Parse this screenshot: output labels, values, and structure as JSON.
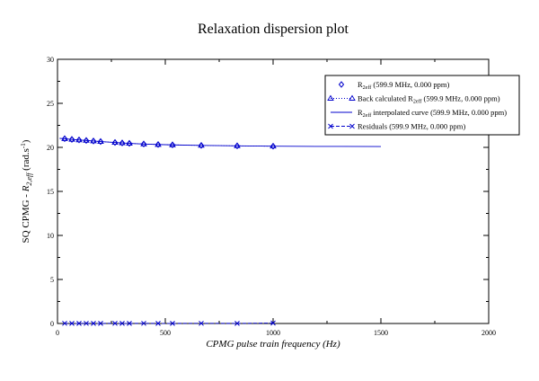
{
  "chart_data": {
    "type": "scatter",
    "title": "Relaxation dispersion plot",
    "xlabel": "CPMG pulse train frequency (Hz)",
    "ylabel_prefix": "SQ CPMG - ",
    "ylabel_var": "R",
    "ylabel_sub": "2,eff",
    "ylabel_units_pre": " (rad.s",
    "ylabel_units_sup": "-1",
    "ylabel_units_post": ")",
    "xlim": [
      0,
      2000
    ],
    "ylim": [
      0,
      30
    ],
    "xticks": [
      0,
      500,
      1000,
      1500,
      2000
    ],
    "yticks": [
      0,
      5,
      10,
      15,
      20,
      25,
      30
    ],
    "legend_position": "top-right",
    "colors": {
      "series": "#0000cc",
      "axis": "#000000"
    },
    "x": [
      33.3,
      66.7,
      100,
      133.3,
      166.7,
      200,
      266.7,
      300,
      333.3,
      400,
      466.7,
      533.3,
      666.7,
      833.3,
      1000
    ],
    "series": [
      {
        "name": "R2eff (599.9 MHz, 0.000 ppm)",
        "legend_main": "R",
        "legend_sub": "2eff",
        "legend_tail": " (599.9 MHz, 0.000 ppm)",
        "marker": "diamond",
        "line": "none",
        "values": [
          20.98,
          20.9,
          20.84,
          20.78,
          20.72,
          20.66,
          20.55,
          20.5,
          20.45,
          20.38,
          20.32,
          20.28,
          20.22,
          20.17,
          20.13
        ]
      },
      {
        "name": "Back calculated R2eff (599.9 MHz, 0.000 ppm)",
        "legend_main": "Back calculated R",
        "legend_sub": "2eff",
        "legend_tail": " (599.9 MHz, 0.000 ppm)",
        "marker": "triangle",
        "line": "dotted",
        "values": [
          20.98,
          20.9,
          20.84,
          20.78,
          20.72,
          20.66,
          20.55,
          20.5,
          20.45,
          20.38,
          20.32,
          20.28,
          20.22,
          20.17,
          20.13
        ]
      },
      {
        "name": "R2eff interpolated curve (599.9 MHz, 0.000 ppm)",
        "legend_main": "R",
        "legend_sub": "2eff",
        "legend_tail": " interpolated curve (599.9 MHz, 0.000 ppm)",
        "marker": "none",
        "line": "solid",
        "x": [
          10,
          33.3,
          66.7,
          100,
          133.3,
          166.7,
          200,
          266.7,
          333.3,
          400,
          533.3,
          666.7,
          833.3,
          1000,
          1200,
          1500
        ],
        "values": [
          21.02,
          20.98,
          20.9,
          20.84,
          20.78,
          20.72,
          20.66,
          20.55,
          20.45,
          20.38,
          20.28,
          20.22,
          20.17,
          20.13,
          20.11,
          20.1
        ]
      },
      {
        "name": "Residuals (599.9 MHz, 0.000 ppm)",
        "legend_main": "Residuals",
        "legend_sub": "",
        "legend_tail": " (599.9 MHz, 0.000 ppm)",
        "marker": "x",
        "line": "dashed",
        "values": [
          0.02,
          0.01,
          0.01,
          0.02,
          0.01,
          0.01,
          0.02,
          0.01,
          0.01,
          0.02,
          0.01,
          0.01,
          0.02,
          0.01,
          0.05
        ]
      }
    ]
  }
}
